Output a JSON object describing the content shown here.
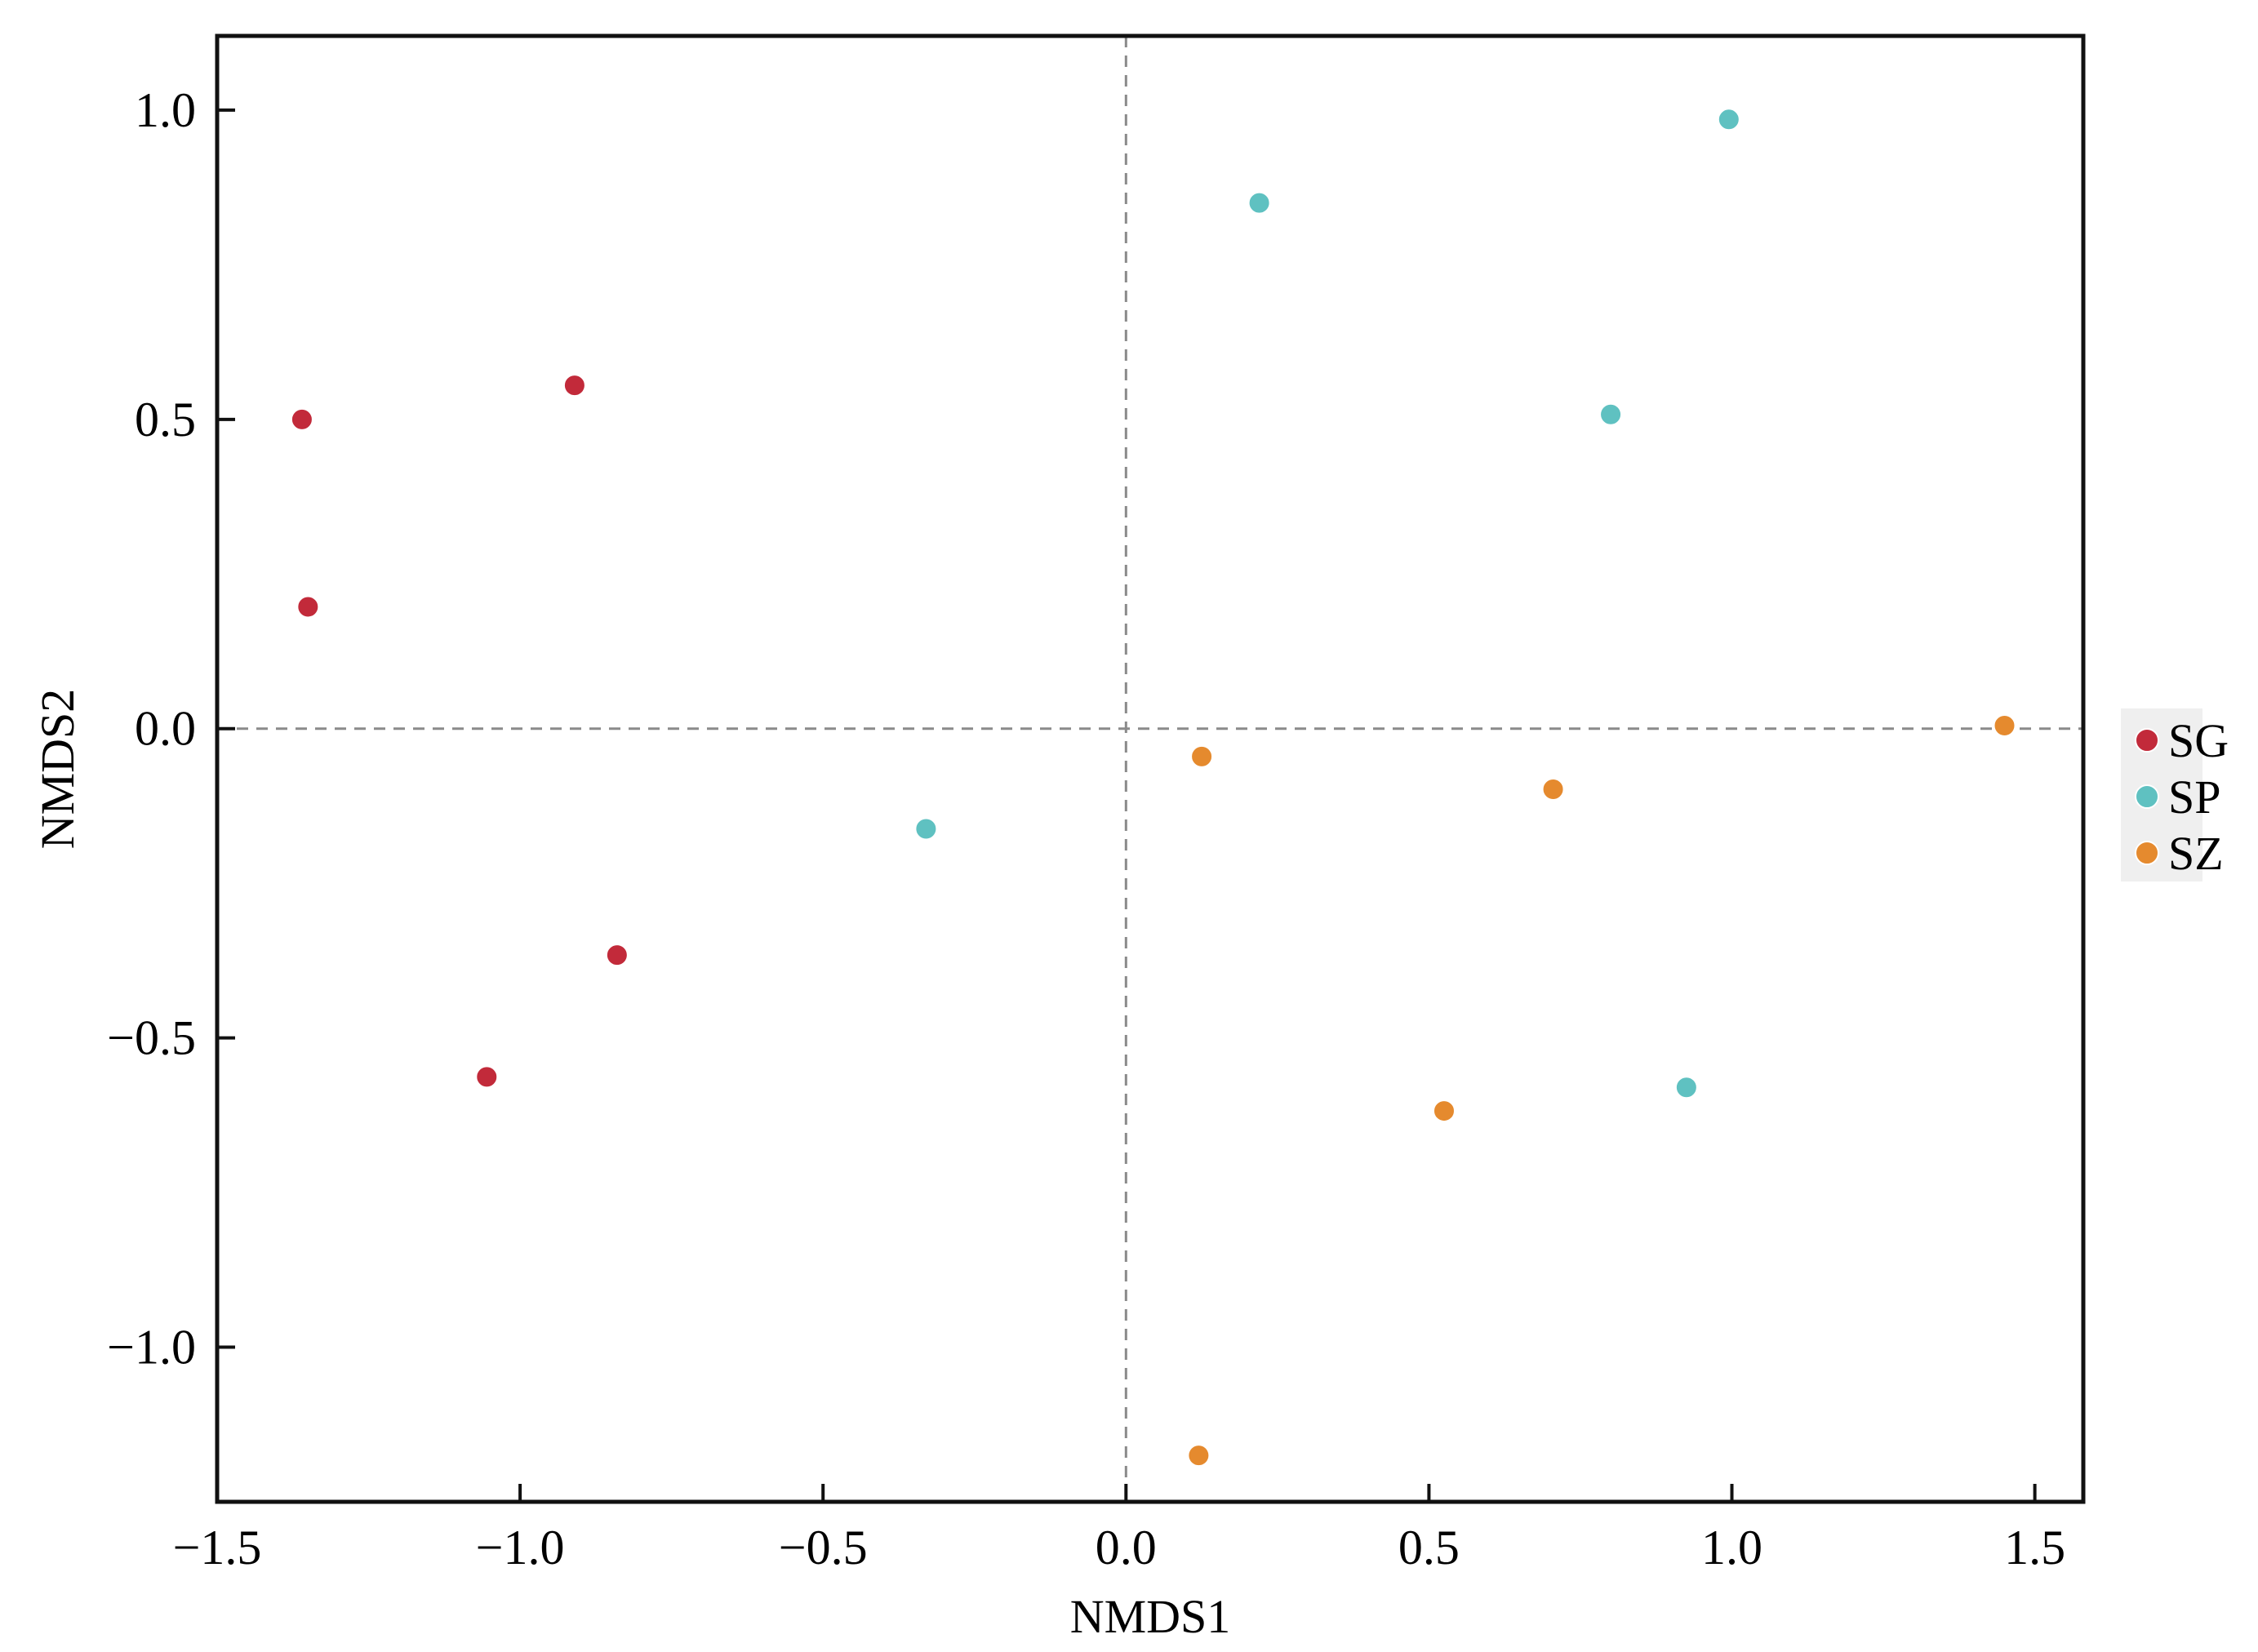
{
  "chart_data": {
    "type": "scatter",
    "title": "",
    "xlabel": "NMDS1",
    "ylabel": "NMDS2",
    "xlim": [
      -1.5,
      1.58
    ],
    "ylim": [
      -1.25,
      1.12
    ],
    "xticks": [
      -1.5,
      -1.0,
      -0.5,
      0.0,
      0.5,
      1.0,
      1.5
    ],
    "yticks": [
      -1.0,
      -0.5,
      0.0,
      0.5,
      1.0
    ],
    "xtick_labels": [
      "−1.5",
      "−1.0",
      "−0.5",
      "0.0",
      "0.5",
      "1.0",
      "1.5"
    ],
    "ytick_labels": [
      "−1.0",
      "−0.5",
      "0.0",
      "0.5",
      "1.0"
    ],
    "reference_lines": {
      "x": 0,
      "y": 0,
      "style": "dashed"
    },
    "grid": false,
    "legend_position": "right",
    "series": [
      {
        "name": "SG",
        "color": "#c22a3a",
        "points": [
          {
            "x": -1.36,
            "y": 0.5
          },
          {
            "x": -0.91,
            "y": 0.555
          },
          {
            "x": -1.35,
            "y": 0.197
          },
          {
            "x": -0.84,
            "y": -0.366
          },
          {
            "x": -1.055,
            "y": -0.563
          }
        ]
      },
      {
        "name": "SP",
        "color": "#5fc1c1",
        "points": [
          {
            "x": 0.22,
            "y": 0.85
          },
          {
            "x": 0.995,
            "y": 0.985
          },
          {
            "x": 0.8,
            "y": 0.508
          },
          {
            "x": -0.33,
            "y": -0.162
          },
          {
            "x": 0.925,
            "y": -0.58
          }
        ]
      },
      {
        "name": "SZ",
        "color": "#e58a2e",
        "points": [
          {
            "x": 1.45,
            "y": 0.005
          },
          {
            "x": 0.125,
            "y": -0.045
          },
          {
            "x": 0.705,
            "y": -0.098
          },
          {
            "x": 0.525,
            "y": -0.618
          },
          {
            "x": 0.12,
            "y": -1.175
          }
        ]
      }
    ]
  }
}
